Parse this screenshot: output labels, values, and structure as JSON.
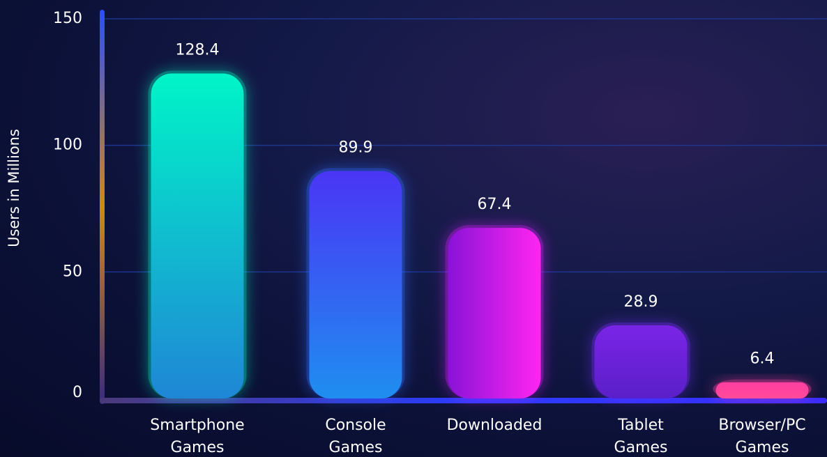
{
  "chart_data": {
    "type": "bar",
    "title": "",
    "xlabel": "",
    "ylabel": "Users in Millions",
    "ylim": [
      0,
      150
    ],
    "yticks": [
      0,
      50,
      100,
      150
    ],
    "grid": true,
    "categories": [
      [
        "Smartphone",
        "Games"
      ],
      [
        "Console",
        "Games"
      ],
      [
        "Downloaded"
      ],
      [
        "Tablet",
        "Games"
      ],
      [
        "Browser/PC",
        "Games"
      ]
    ],
    "values": [
      128.4,
      89.9,
      67.4,
      28.9,
      6.4
    ],
    "value_labels": [
      "128.4",
      "89.9",
      "67.4",
      "28.9",
      "6.4"
    ],
    "bar_colors": [
      [
        "#00f5c8",
        "#1f86d6"
      ],
      [
        "#4a35f5",
        "#1f8ef0"
      ],
      [
        "#8a12d8",
        "#ff25f0"
      ],
      [
        "#7a24e6",
        "#5a1fc8"
      ],
      [
        "#ff3fa0",
        "#ff4a9a"
      ]
    ],
    "glow_colors": [
      "#00f0c0",
      "#2f6cff",
      "#d81fff",
      "#7a2cff",
      "#ff3d9a"
    ]
  }
}
